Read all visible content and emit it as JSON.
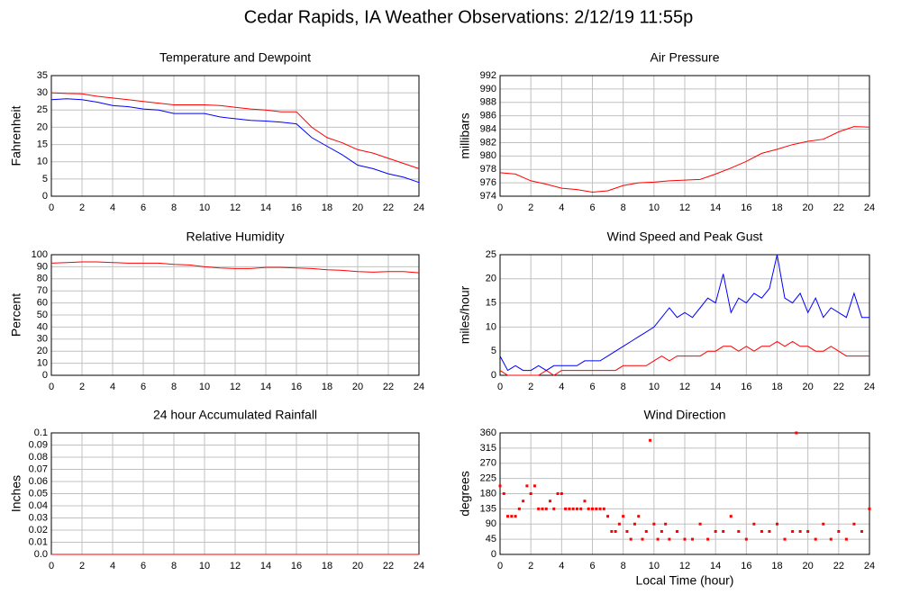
{
  "title": "Cedar Rapids, IA Weather Observations: 2/12/19 11:55p",
  "chart_data": [
    {
      "type": "line",
      "title": "Temperature and Dewpoint",
      "ylabel": "Fahrenheit",
      "x": [
        0,
        1,
        2,
        3,
        4,
        5,
        6,
        7,
        8,
        9,
        10,
        11,
        12,
        13,
        14,
        15,
        16,
        17,
        18,
        19,
        20,
        21,
        22,
        23,
        24
      ],
      "series": [
        {
          "color": "#ff0000",
          "values": [
            30,
            29.8,
            29.7,
            29,
            28.5,
            28,
            27.5,
            27,
            26.5,
            26.5,
            26.5,
            26.3,
            25.8,
            25.3,
            25,
            24.5,
            24.5,
            20,
            17,
            15.5,
            13.5,
            12.5,
            11,
            9.5,
            8
          ]
        },
        {
          "color": "#0000ff",
          "values": [
            28,
            28.3,
            28,
            27.3,
            26.3,
            26,
            25.3,
            25,
            24,
            24,
            24,
            23,
            22.5,
            22,
            21.8,
            21.5,
            21,
            17,
            14.5,
            12,
            9,
            8,
            6.5,
            5.5,
            4
          ]
        }
      ],
      "xlim": [
        0,
        24
      ],
      "xticks": [
        0,
        2,
        4,
        6,
        8,
        10,
        12,
        14,
        16,
        18,
        20,
        22,
        24
      ],
      "ylim": [
        0,
        35
      ],
      "yticks": [
        0,
        5,
        10,
        15,
        20,
        25,
        30,
        35
      ],
      "grid": true
    },
    {
      "type": "line",
      "title": "Air Pressure",
      "ylabel": "millibars",
      "x": [
        0,
        1,
        2,
        3,
        4,
        5,
        6,
        7,
        8,
        9,
        10,
        11,
        12,
        13,
        14,
        15,
        16,
        17,
        18,
        19,
        20,
        21,
        22,
        23,
        24
      ],
      "series": [
        {
          "color": "#ff0000",
          "values": [
            977.5,
            977.3,
            976.3,
            975.8,
            975.2,
            975,
            974.6,
            974.8,
            975.6,
            976,
            976.1,
            976.3,
            976.4,
            976.5,
            977.3,
            978.2,
            979.2,
            980.4,
            981,
            981.7,
            982.2,
            982.5,
            983.6,
            984.4,
            984.3
          ]
        }
      ],
      "xlim": [
        0,
        24
      ],
      "xticks": [
        0,
        2,
        4,
        6,
        8,
        10,
        12,
        14,
        16,
        18,
        20,
        22,
        24
      ],
      "ylim": [
        974,
        992
      ],
      "yticks": [
        974,
        976,
        978,
        980,
        982,
        984,
        986,
        988,
        990,
        992
      ],
      "grid": true
    },
    {
      "type": "line",
      "title": "Relative Humidity",
      "ylabel": "Percent",
      "x": [
        0,
        1,
        2,
        3,
        4,
        5,
        6,
        7,
        8,
        9,
        10,
        11,
        12,
        13,
        14,
        15,
        16,
        17,
        18,
        19,
        20,
        21,
        22,
        23,
        24
      ],
      "series": [
        {
          "color": "#ff0000",
          "values": [
            93,
            93.5,
            94,
            94,
            93.5,
            93,
            93,
            93,
            92,
            91.5,
            90,
            89,
            88.5,
            88.5,
            89.5,
            89.5,
            89,
            88.5,
            87.5,
            87,
            86,
            85.5,
            86,
            86,
            85
          ]
        }
      ],
      "xlim": [
        0,
        24
      ],
      "xticks": [
        0,
        2,
        4,
        6,
        8,
        10,
        12,
        14,
        16,
        18,
        20,
        22,
        24
      ],
      "ylim": [
        0,
        100
      ],
      "yticks": [
        0,
        10,
        20,
        30,
        40,
        50,
        60,
        70,
        80,
        90,
        100
      ],
      "grid": true
    },
    {
      "type": "line",
      "title": "Wind Speed and Peak Gust",
      "ylabel": "miles/hour",
      "x": [
        0,
        0.5,
        1,
        1.5,
        2,
        2.5,
        3,
        3.5,
        4,
        4.5,
        5,
        5.5,
        6,
        6.5,
        7,
        7.5,
        8,
        8.5,
        9,
        9.5,
        10,
        10.5,
        11,
        11.5,
        12,
        12.5,
        13,
        13.5,
        14,
        14.5,
        15,
        15.5,
        16,
        16.5,
        17,
        17.5,
        18,
        18.5,
        19,
        19.5,
        20,
        20.5,
        21,
        21.5,
        22,
        22.5,
        23,
        23.5,
        24
      ],
      "series": [
        {
          "color": "#ff0000",
          "values": [
            1,
            0,
            0,
            0,
            0,
            0,
            1,
            0,
            1,
            1,
            1,
            1,
            1,
            1,
            1,
            1,
            2,
            2,
            2,
            2,
            3,
            4,
            3,
            4,
            4,
            4,
            4,
            5,
            5,
            6,
            6,
            5,
            6,
            5,
            6,
            6,
            7,
            6,
            7,
            6,
            6,
            5,
            5,
            6,
            5,
            4,
            4,
            4,
            4
          ]
        },
        {
          "color": "#0000ff",
          "values": [
            4,
            1,
            2,
            1,
            1,
            2,
            1,
            2,
            2,
            2,
            2,
            3,
            3,
            3,
            4,
            5,
            6,
            7,
            8,
            9,
            10,
            12,
            14,
            12,
            13,
            12,
            14,
            16,
            15,
            21,
            13,
            16,
            15,
            17,
            16,
            18,
            25,
            16,
            15,
            17,
            13,
            16,
            12,
            14,
            13,
            12,
            17,
            12,
            12
          ]
        }
      ],
      "xlim": [
        0,
        24
      ],
      "xticks": [
        0,
        2,
        4,
        6,
        8,
        10,
        12,
        14,
        16,
        18,
        20,
        22,
        24
      ],
      "ylim": [
        0,
        25
      ],
      "yticks": [
        0,
        5,
        10,
        15,
        20,
        25
      ],
      "grid": true
    },
    {
      "type": "line",
      "title": "24 hour Accumulated Rainfall",
      "ylabel": "Inches",
      "x": [
        0,
        24
      ],
      "series": [
        {
          "color": "#ff0000",
          "values": [
            0,
            0
          ]
        }
      ],
      "xlim": [
        0,
        24
      ],
      "xticks": [
        0,
        2,
        4,
        6,
        8,
        10,
        12,
        14,
        16,
        18,
        20,
        22,
        24
      ],
      "ylim": [
        0,
        0.1
      ],
      "yticks": [
        {
          "value": 0,
          "label": "0.0"
        },
        0.01,
        0.02,
        0.03,
        0.04,
        0.05,
        0.06,
        0.07,
        0.08,
        0.09,
        0.1
      ],
      "grid": true
    },
    {
      "type": "scatter",
      "title": "Wind Direction",
      "ylabel": "degrees",
      "xlabel": "Local Time (hour)",
      "x": [
        0,
        0.25,
        0.5,
        0.75,
        1,
        1.25,
        1.5,
        1.75,
        2,
        2.25,
        2.5,
        2.75,
        3,
        3.25,
        3.5,
        3.75,
        4,
        4.25,
        4.5,
        4.75,
        5,
        5.25,
        5.5,
        5.75,
        6,
        6.25,
        6.5,
        6.75,
        7,
        7.25,
        7.5,
        7.75,
        8,
        8.25,
        8.5,
        8.75,
        9,
        9.25,
        9.5,
        9.75,
        10,
        10.25,
        10.5,
        10.75,
        11,
        11.5,
        12,
        12.5,
        13,
        13.5,
        14,
        14.5,
        15,
        15.5,
        16,
        16.5,
        17,
        17.5,
        18,
        18.5,
        19,
        19.25,
        19.5,
        20,
        20.5,
        21,
        21.5,
        22,
        22.5,
        23,
        23.5,
        24
      ],
      "values": [
        203,
        180,
        113,
        113,
        113,
        135,
        158,
        203,
        180,
        203,
        135,
        135,
        135,
        158,
        135,
        180,
        180,
        135,
        135,
        135,
        135,
        135,
        158,
        135,
        135,
        135,
        135,
        135,
        113,
        68,
        68,
        90,
        113,
        68,
        45,
        90,
        113,
        45,
        68,
        338,
        90,
        45,
        68,
        90,
        45,
        68,
        45,
        45,
        90,
        45,
        68,
        68,
        113,
        68,
        45,
        90,
        68,
        68,
        90,
        45,
        68,
        360,
        68,
        68,
        45,
        90,
        45,
        68,
        45,
        90,
        68,
        135
      ],
      "color": "#ff0000",
      "xlim": [
        0,
        24
      ],
      "xticks": [
        0,
        2,
        4,
        6,
        8,
        10,
        12,
        14,
        16,
        18,
        20,
        22,
        24
      ],
      "ylim": [
        0,
        360
      ],
      "yticks": [
        0,
        45,
        90,
        135,
        180,
        225,
        270,
        315,
        360
      ],
      "grid": true
    }
  ]
}
